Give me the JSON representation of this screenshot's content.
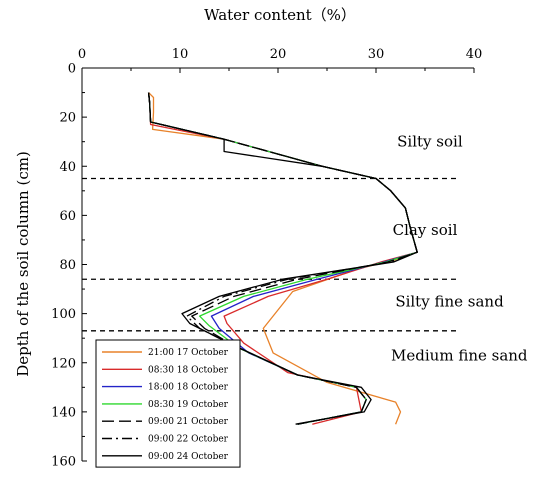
{
  "chart_data": {
    "type": "line",
    "title": "",
    "xlabel": "Water content（%）",
    "ylabel": "Depth of the soil column (cm)",
    "xlim": [
      0,
      40
    ],
    "ylim": [
      0,
      160
    ],
    "y_inverted": true,
    "x_axis_position": "top",
    "x_ticks": [
      "0",
      "10",
      "20",
      "30",
      "40"
    ],
    "y_ticks": [
      "0",
      "20",
      "40",
      "60",
      "80",
      "100",
      "120",
      "140",
      "160"
    ],
    "grid": false,
    "legend_position": "bottom-left",
    "layer_boundaries": [
      45,
      86,
      107
    ],
    "zone_labels": [
      {
        "text": "Silty soil",
        "x": 35.5,
        "y": 32
      },
      {
        "text": "Clay soil",
        "x": 35,
        "y": 68
      },
      {
        "text": "Silty fine sand",
        "x": 37.5,
        "y": 97
      },
      {
        "text": "Medium fine sand",
        "x": 38.5,
        "y": 119
      }
    ],
    "series": [
      {
        "name": "21:00 17 October",
        "color": "#E8822A",
        "dash": "solid",
        "points": [
          [
            6.8,
            10
          ],
          [
            7.3,
            12
          ],
          [
            7.3,
            18
          ],
          [
            7.2,
            25
          ],
          [
            14.5,
            29
          ],
          [
            24.5,
            40
          ],
          [
            30,
            45
          ],
          [
            31.5,
            50
          ],
          [
            33,
            57
          ],
          [
            33.5,
            65
          ],
          [
            34.2,
            75
          ],
          [
            32,
            78
          ],
          [
            28,
            82
          ],
          [
            21.5,
            91
          ],
          [
            18.5,
            106
          ],
          [
            19.5,
            116
          ],
          [
            25,
            128
          ],
          [
            32,
            136
          ],
          [
            32.5,
            140
          ],
          [
            32,
            145
          ]
        ]
      },
      {
        "name": "08:30 18 October",
        "color": "#D92B2B",
        "dash": "solid",
        "points": [
          [
            6.8,
            10
          ],
          [
            6.9,
            14
          ],
          [
            7,
            23
          ],
          [
            14.5,
            29
          ],
          [
            24.5,
            40
          ],
          [
            30,
            45
          ],
          [
            31.5,
            50
          ],
          [
            33,
            57
          ],
          [
            33.5,
            65
          ],
          [
            34.2,
            75
          ],
          [
            30.5,
            79
          ],
          [
            25,
            86
          ],
          [
            19,
            93
          ],
          [
            14.5,
            101
          ],
          [
            14.8,
            104
          ],
          [
            16.5,
            112
          ],
          [
            21,
            124
          ],
          [
            28,
            130
          ],
          [
            28.5,
            140
          ],
          [
            23.5,
            145
          ]
        ]
      },
      {
        "name": "18:00 18 October",
        "color": "#2424C8",
        "dash": "solid",
        "points": [
          [
            6.8,
            10
          ],
          [
            6.9,
            14
          ],
          [
            7,
            22
          ],
          [
            14.5,
            29
          ],
          [
            24.5,
            40
          ],
          [
            30,
            45
          ],
          [
            31.5,
            50
          ],
          [
            33,
            57
          ],
          [
            33.5,
            65
          ],
          [
            34.2,
            75
          ],
          [
            30.8,
            79
          ],
          [
            24,
            86
          ],
          [
            17.5,
            93
          ],
          [
            13.2,
            101
          ],
          [
            14,
            106
          ],
          [
            17,
            116
          ],
          [
            22,
            125
          ],
          [
            28,
            130
          ],
          [
            29,
            135
          ],
          [
            28.5,
            140
          ],
          [
            22,
            145
          ]
        ]
      },
      {
        "name": "08:30 19 October",
        "color": "#2ED82E",
        "dash": "solid",
        "points": [
          [
            6.8,
            10
          ],
          [
            6.9,
            14
          ],
          [
            7,
            22
          ],
          [
            14.5,
            29
          ],
          [
            24.5,
            40
          ],
          [
            30,
            45
          ],
          [
            31.5,
            50
          ],
          [
            33,
            57
          ],
          [
            33.5,
            65
          ],
          [
            34.2,
            75
          ],
          [
            31,
            79
          ],
          [
            23,
            86
          ],
          [
            16.5,
            93
          ],
          [
            12,
            101
          ],
          [
            13,
            105
          ],
          [
            16,
            114
          ],
          [
            22,
            125
          ],
          [
            28,
            130
          ],
          [
            29,
            135
          ],
          [
            28.5,
            140
          ],
          [
            22,
            145
          ]
        ]
      },
      {
        "name": "09:00 21 October",
        "color": "#000000",
        "dash": "long",
        "points": [
          [
            6.8,
            10
          ],
          [
            6.9,
            14
          ],
          [
            7,
            22
          ],
          [
            14.5,
            29
          ],
          [
            24.5,
            40
          ],
          [
            30,
            45
          ],
          [
            31.5,
            50
          ],
          [
            33,
            57
          ],
          [
            33.5,
            65
          ],
          [
            34.2,
            75
          ],
          [
            31.2,
            79
          ],
          [
            22,
            86
          ],
          [
            15.5,
            93
          ],
          [
            11.2,
            101
          ],
          [
            12.5,
            106
          ],
          [
            15.5,
            113
          ],
          [
            22,
            125
          ],
          [
            28,
            130
          ],
          [
            29,
            135
          ],
          [
            28.5,
            140
          ],
          [
            22,
            145
          ]
        ]
      },
      {
        "name": "09:00 22 October",
        "color": "#000000",
        "dash": "dashdot",
        "points": [
          [
            6.8,
            10
          ],
          [
            6.9,
            14
          ],
          [
            7,
            22
          ],
          [
            14.5,
            29
          ],
          [
            24.5,
            40
          ],
          [
            30,
            45
          ],
          [
            31.5,
            50
          ],
          [
            33,
            57
          ],
          [
            33.5,
            65
          ],
          [
            34.2,
            75
          ],
          [
            31.5,
            79
          ],
          [
            21,
            86
          ],
          [
            14.5,
            93
          ],
          [
            10.7,
            101
          ],
          [
            12,
            106
          ],
          [
            15.5,
            113
          ],
          [
            22,
            125
          ],
          [
            28,
            130
          ],
          [
            29,
            135
          ],
          [
            28.5,
            140
          ],
          [
            22,
            145
          ]
        ]
      },
      {
        "name": "09:00 24 October",
        "color": "#000000",
        "dash": "solid",
        "points": [
          [
            6.8,
            10
          ],
          [
            6.9,
            14
          ],
          [
            7,
            22
          ],
          [
            14.5,
            29
          ],
          [
            14.5,
            34
          ],
          [
            24.5,
            40
          ],
          [
            30,
            45
          ],
          [
            31.5,
            50
          ],
          [
            33,
            57
          ],
          [
            33.5,
            65
          ],
          [
            34.2,
            75
          ],
          [
            31.8,
            79
          ],
          [
            20.5,
            86
          ],
          [
            14,
            93
          ],
          [
            10.2,
            100
          ],
          [
            11,
            104
          ],
          [
            15,
            112
          ],
          [
            22,
            125
          ],
          [
            28.5,
            130
          ],
          [
            29.5,
            135
          ],
          [
            28.8,
            140
          ],
          [
            21.8,
            145
          ]
        ]
      }
    ]
  }
}
